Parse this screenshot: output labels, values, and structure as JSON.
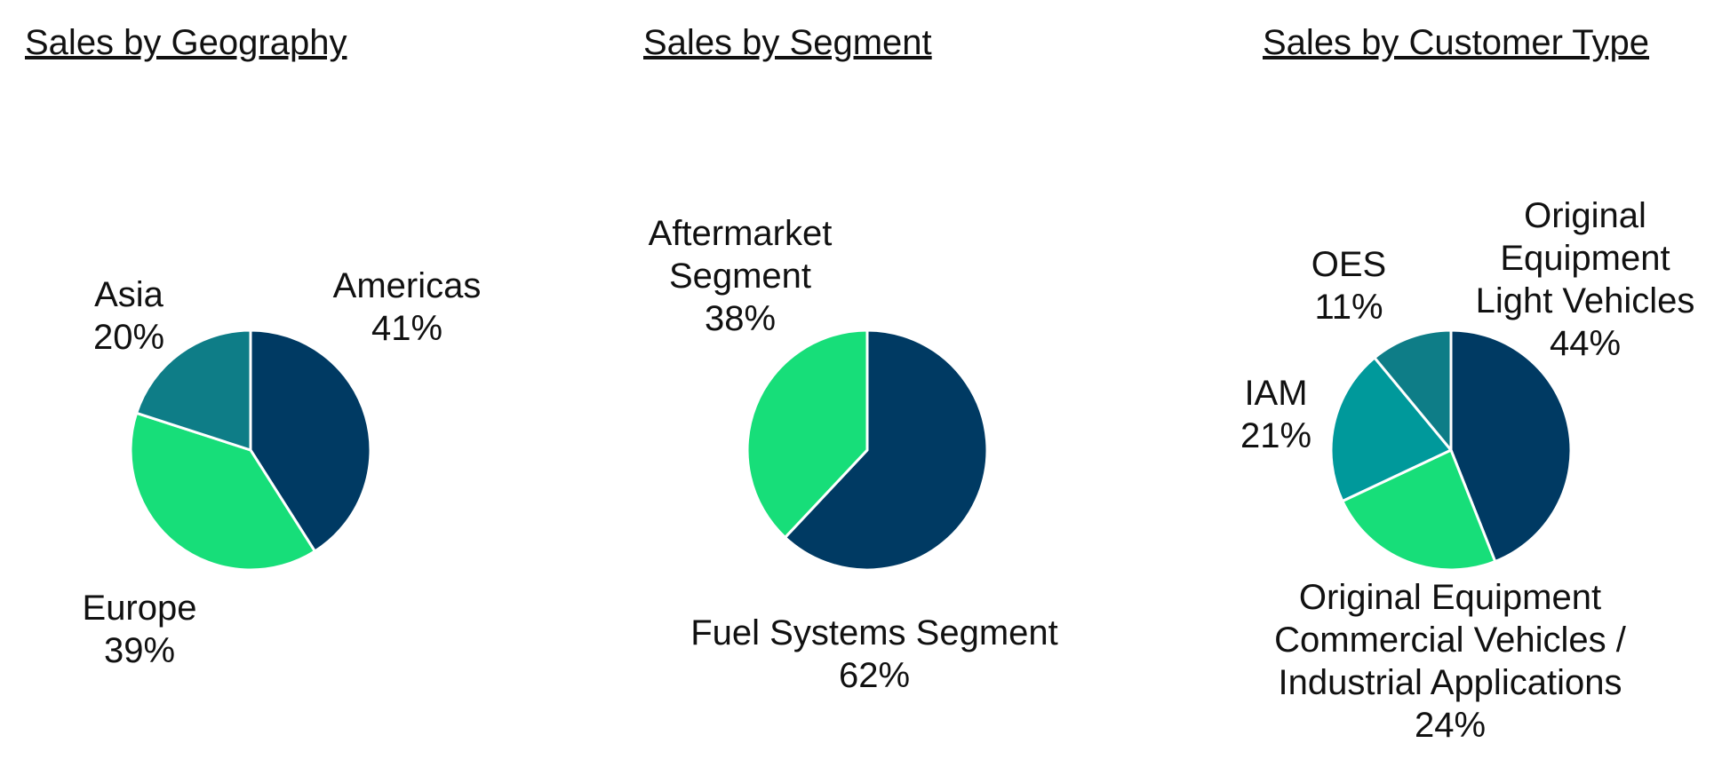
{
  "chart_data": [
    {
      "type": "pie",
      "title": "Sales by Geography",
      "categories": [
        "Americas",
        "Europe",
        "Asia"
      ],
      "values": [
        41,
        39,
        20
      ],
      "value_labels": [
        "41%",
        "39%",
        "20%"
      ],
      "colors": [
        "#003a63",
        "#17de79",
        "#0e7d87"
      ]
    },
    {
      "type": "pie",
      "title": "Sales by Segment",
      "categories": [
        "Fuel Systems Segment",
        "Aftermarket Segment"
      ],
      "values": [
        62,
        38
      ],
      "value_labels": [
        "62%",
        "38%"
      ],
      "colors": [
        "#003a63",
        "#17de79"
      ]
    },
    {
      "type": "pie",
      "title": "Sales by Customer Type",
      "categories": [
        "Original Equipment Light Vehicles",
        "Original Equipment Commercial Vehicles / Industrial Applications",
        "IAM",
        "OES"
      ],
      "values": [
        44,
        24,
        21,
        11
      ],
      "value_labels": [
        "44%",
        "24%",
        "21%",
        "11%"
      ],
      "colors": [
        "#003a63",
        "#17de79",
        "#00999b",
        "#0e7d87"
      ]
    }
  ]
}
